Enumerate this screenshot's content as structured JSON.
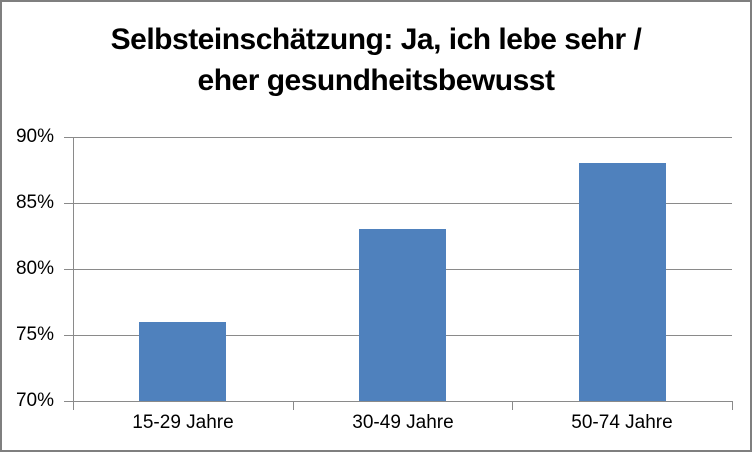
{
  "chart_data": {
    "type": "bar",
    "title": "Selbsteinschätzung: Ja, ich lebe sehr / eher gesundheitsbewusst",
    "title_lines": [
      "Selbsteinschätzung: Ja, ich lebe sehr /",
      "eher gesundheitsbewusst"
    ],
    "categories": [
      "15-29 Jahre",
      "30-49 Jahre",
      "50-74 Jahre"
    ],
    "values": [
      76,
      83,
      88
    ],
    "xlabel": "",
    "ylabel": "",
    "ylim": [
      70,
      90
    ],
    "ytick_step": 5,
    "ytick_labels": [
      "70%",
      "75%",
      "80%",
      "85%",
      "90%"
    ],
    "grid": true,
    "legend": false,
    "colors": {
      "bar": "#4F81BD",
      "gridline": "#8A8A8A",
      "axis": "#8A8A8A",
      "text": "#000000",
      "frame_border": "#7F7F7F",
      "background": "#FFFFFF"
    }
  }
}
